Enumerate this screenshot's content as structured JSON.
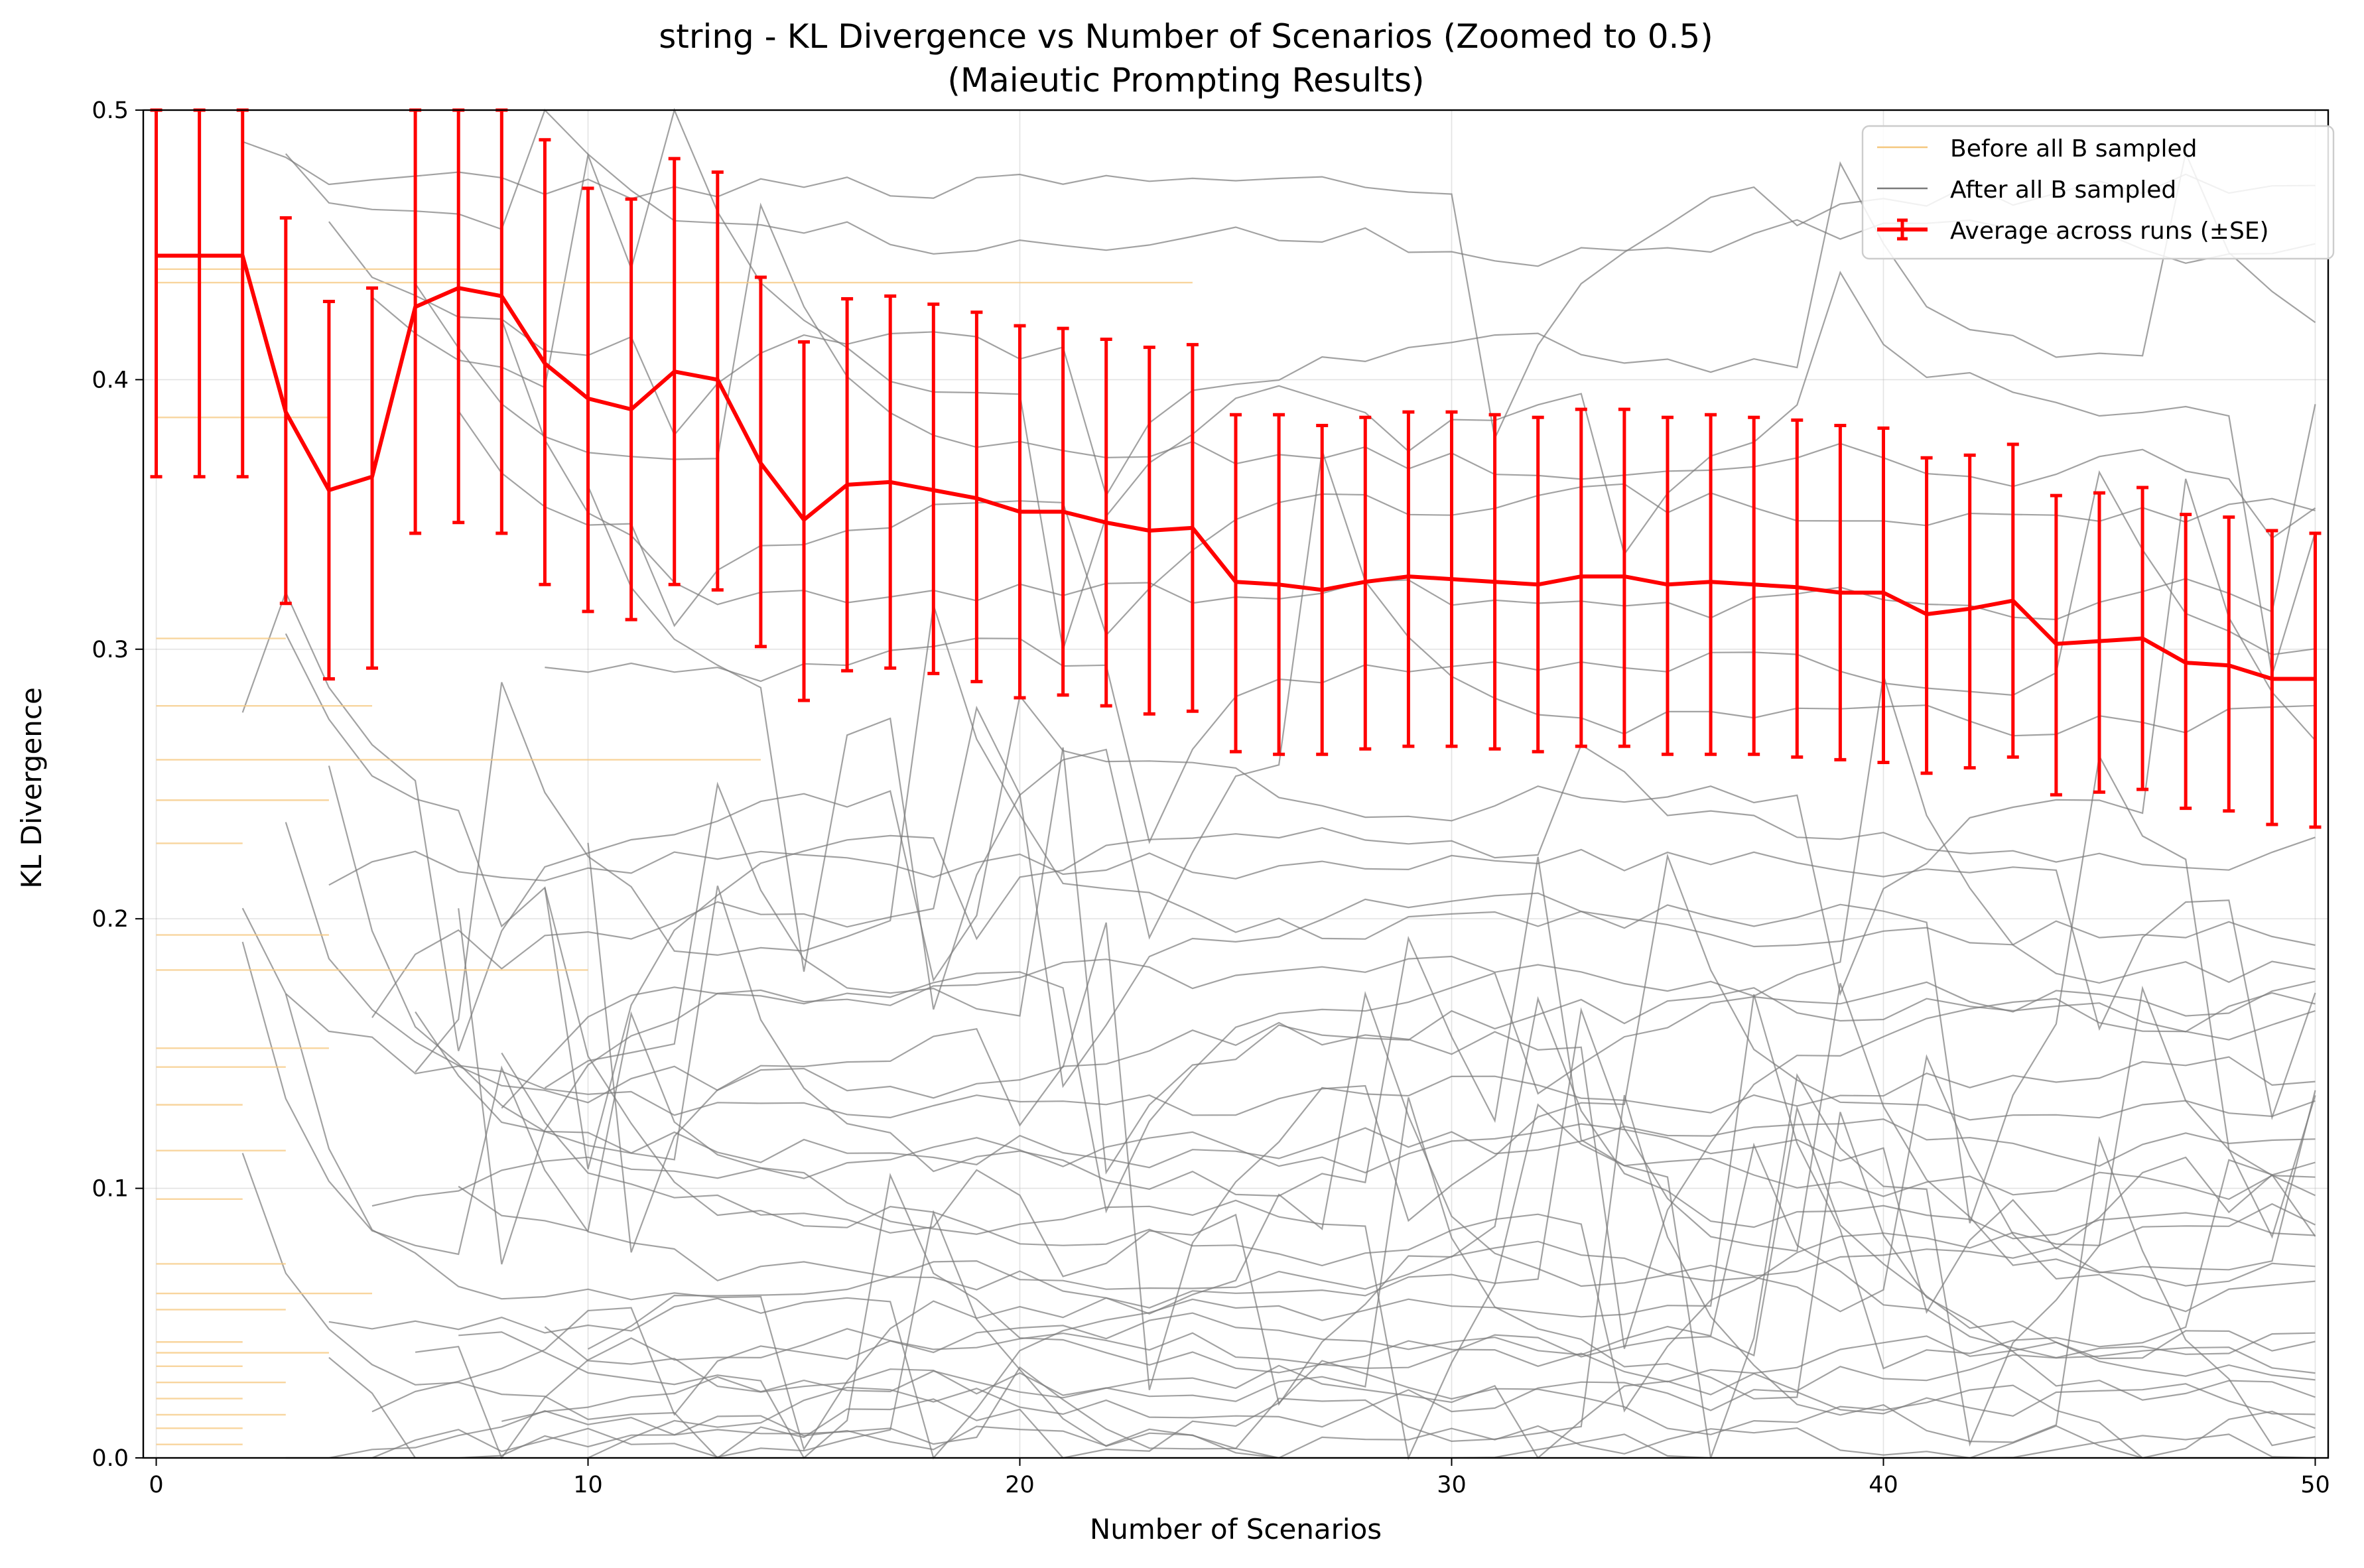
{
  "chart_data": {
    "type": "line",
    "title": "string - KL Divergence vs Number of Scenarios (Zoomed to 0.5)",
    "subtitle": "(Maieutic Prompting Results)",
    "xlabel": "Number of Scenarios",
    "ylabel": "KL Divergence",
    "xlim": [
      -0.3,
      50.3
    ],
    "ylim": [
      0,
      0.5
    ],
    "xticks": [
      0,
      10,
      20,
      30,
      40,
      50
    ],
    "xtick_labels": [
      "0",
      "10",
      "20",
      "30",
      "40",
      "50"
    ],
    "yticks": [
      0.0,
      0.1,
      0.2,
      0.3,
      0.4,
      0.5
    ],
    "ytick_labels": [
      "0.0",
      "0.1",
      "0.2",
      "0.3",
      "0.4",
      "0.5"
    ],
    "grid": true,
    "legend_position": "top-right",
    "legend": [
      {
        "label": "Before all B sampled",
        "color": "#f5c77e"
      },
      {
        "label": "After all B sampled",
        "color": "#7a7a7a"
      },
      {
        "label": "Average across runs (±SE)",
        "color": "#ff0000"
      }
    ],
    "average_series": {
      "name": "Average across runs (±SE)",
      "color": "#ff0000",
      "x": [
        0,
        1,
        2,
        3,
        4,
        5,
        6,
        7,
        8,
        9,
        10,
        11,
        12,
        13,
        14,
        15,
        16,
        17,
        18,
        19,
        20,
        21,
        22,
        23,
        24,
        25,
        26,
        27,
        28,
        29,
        30,
        31,
        32,
        33,
        34,
        35,
        36,
        37,
        38,
        39,
        40,
        41,
        42,
        43,
        44,
        45,
        46,
        47,
        48,
        49,
        50
      ],
      "y": [
        0.446,
        0.446,
        0.446,
        0.388,
        0.359,
        0.364,
        0.427,
        0.434,
        0.431,
        0.406,
        0.393,
        0.389,
        0.403,
        0.4,
        0.369,
        0.348,
        0.361,
        0.362,
        0.359,
        0.356,
        0.351,
        0.351,
        0.347,
        0.344,
        0.345,
        0.325,
        0.324,
        0.322,
        0.325,
        0.327,
        0.326,
        0.325,
        0.324,
        0.327,
        0.327,
        0.324,
        0.325,
        0.324,
        0.323,
        0.321,
        0.321,
        0.313,
        0.315,
        0.318,
        0.302,
        0.303,
        0.304,
        0.295,
        0.294,
        0.289,
        0.289
      ],
      "se_low": [
        0.364,
        0.364,
        0.364,
        0.317,
        0.289,
        0.293,
        0.343,
        0.347,
        0.343,
        0.324,
        0.314,
        0.311,
        0.324,
        0.322,
        0.301,
        0.281,
        0.292,
        0.293,
        0.291,
        0.288,
        0.282,
        0.283,
        0.279,
        0.276,
        0.277,
        0.262,
        0.261,
        0.261,
        0.263,
        0.264,
        0.264,
        0.263,
        0.262,
        0.264,
        0.264,
        0.261,
        0.261,
        0.261,
        0.26,
        0.259,
        0.258,
        0.254,
        0.256,
        0.26,
        0.246,
        0.247,
        0.248,
        0.241,
        0.24,
        0.235,
        0.234
      ],
      "se_high": [
        0.5,
        0.5,
        0.5,
        0.46,
        0.429,
        0.434,
        0.5,
        0.5,
        0.5,
        0.489,
        0.471,
        0.467,
        0.482,
        0.477,
        0.438,
        0.414,
        0.43,
        0.431,
        0.428,
        0.425,
        0.42,
        0.419,
        0.415,
        0.412,
        0.413,
        0.387,
        0.387,
        0.383,
        0.386,
        0.388,
        0.388,
        0.387,
        0.386,
        0.389,
        0.389,
        0.386,
        0.387,
        0.386,
        0.385,
        0.383,
        0.382,
        0.371,
        0.372,
        0.376,
        0.357,
        0.358,
        0.36,
        0.35,
        0.349,
        0.344,
        0.343
      ]
    },
    "before_series": {
      "name": "Before all B sampled",
      "color": "#f5c77e",
      "segments": [
        {
          "x": [
            0,
            24
          ],
          "y": 0.436
        },
        {
          "x": [
            0,
            14
          ],
          "y": 0.259
        },
        {
          "x": [
            0,
            3
          ],
          "y": 0.304
        },
        {
          "x": [
            0,
            5
          ],
          "y": 0.279
        },
        {
          "x": [
            0,
            4
          ],
          "y": 0.386
        },
        {
          "x": [
            0,
            8
          ],
          "y": 0.441
        },
        {
          "x": [
            0,
            4
          ],
          "y": 0.244
        },
        {
          "x": [
            0,
            2
          ],
          "y": 0.228
        },
        {
          "x": [
            0,
            4
          ],
          "y": 0.194
        },
        {
          "x": [
            0,
            10
          ],
          "y": 0.181
        },
        {
          "x": [
            0,
            4
          ],
          "y": 0.152
        },
        {
          "x": [
            0,
            3
          ],
          "y": 0.145
        },
        {
          "x": [
            0,
            2
          ],
          "y": 0.131
        },
        {
          "x": [
            0,
            3
          ],
          "y": 0.114
        },
        {
          "x": [
            0,
            2
          ],
          "y": 0.096
        },
        {
          "x": [
            0,
            3
          ],
          "y": 0.072
        },
        {
          "x": [
            0,
            5
          ],
          "y": 0.061
        },
        {
          "x": [
            0,
            3
          ],
          "y": 0.055
        },
        {
          "x": [
            0,
            2
          ],
          "y": 0.043
        },
        {
          "x": [
            0,
            4
          ],
          "y": 0.039
        },
        {
          "x": [
            0,
            2
          ],
          "y": 0.034
        },
        {
          "x": [
            0,
            3
          ],
          "y": 0.028
        },
        {
          "x": [
            0,
            2
          ],
          "y": 0.022
        },
        {
          "x": [
            0,
            3
          ],
          "y": 0.016
        },
        {
          "x": [
            0,
            2
          ],
          "y": 0.011
        },
        {
          "x": [
            0,
            2
          ],
          "y": 0.005
        }
      ]
    },
    "after_series_levels": [
      0.47,
      0.451,
      0.41,
      0.395,
      0.37,
      0.352,
      0.318,
      0.296,
      0.275,
      0.245,
      0.23,
      0.221,
      0.203,
      0.196,
      0.179,
      0.172,
      0.165,
      0.158,
      0.14,
      0.13,
      0.118,
      0.113,
      0.102,
      0.09,
      0.085,
      0.079,
      0.071,
      0.064,
      0.058,
      0.052,
      0.046,
      0.041,
      0.036,
      0.031,
      0.026,
      0.021,
      0.016,
      0.011,
      0.006,
      0.002
    ],
    "after_series_color": "#7a7a7a"
  }
}
